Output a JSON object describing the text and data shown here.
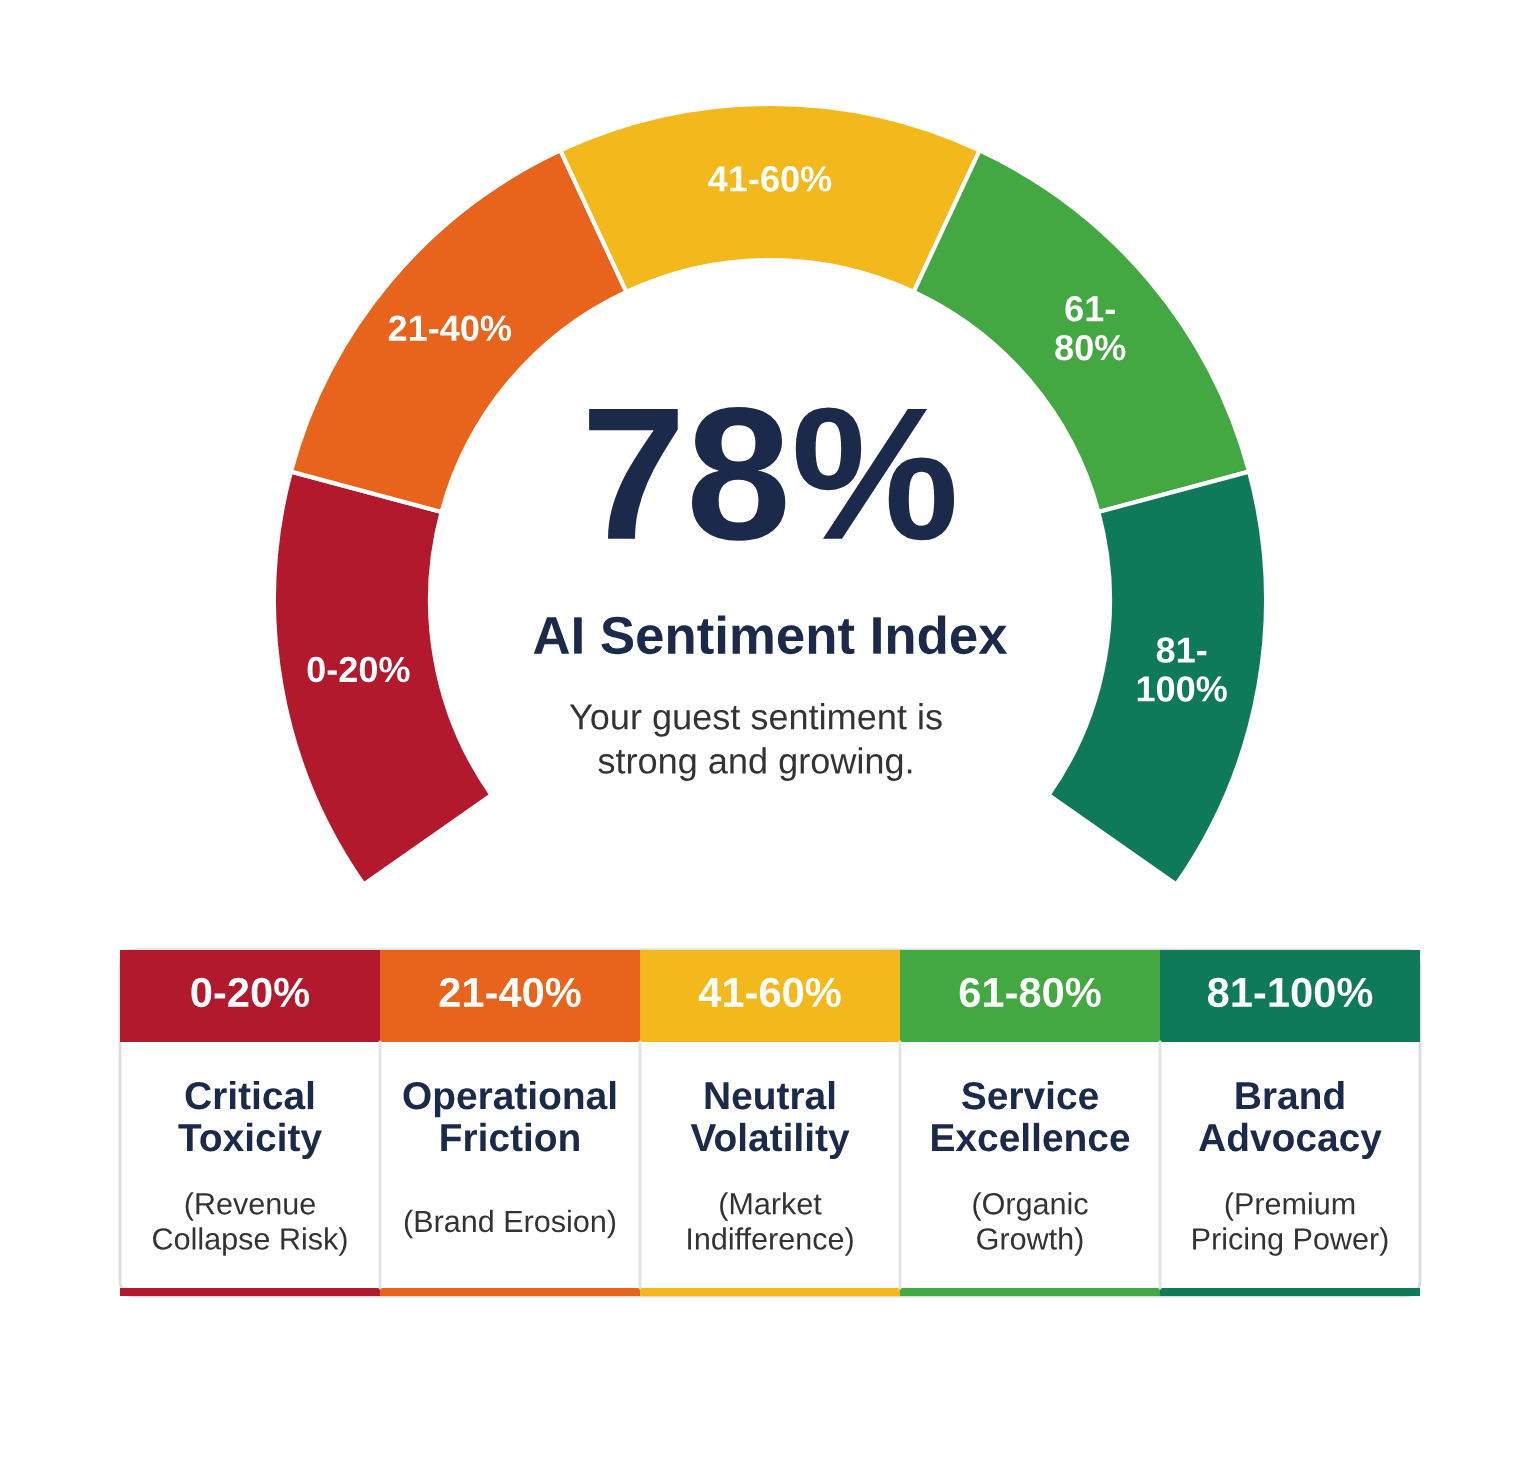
{
  "chart_data": {
    "type": "donut",
    "title": "78%",
    "subtitle": "AI Sentiment Index",
    "categories": [
      "0-20%",
      "21-40%",
      "41-60%",
      "61-80%",
      "81-100%"
    ],
    "values": [
      20,
      20,
      20,
      20,
      20
    ],
    "colors": [
      "#b3192c",
      "#e8641c",
      "#f2b81c",
      "#44a842",
      "#0f7a58"
    ],
    "annotations": [
      "Your guest sentiment is\nstrong and growing.",
      "Critical\nToxicity",
      "Operational\nFriction",
      "Neutral\nVolatility",
      "Service\nExcellence",
      "Brand\nAdvocacy",
      "(Revenue\nCollapse Risk)",
      "(Brand Erosion)",
      "(Market\nIndifference)",
      "(Organic\nGrowth)",
      "(Premium\nPricing Power)"
    ]
  }
}
